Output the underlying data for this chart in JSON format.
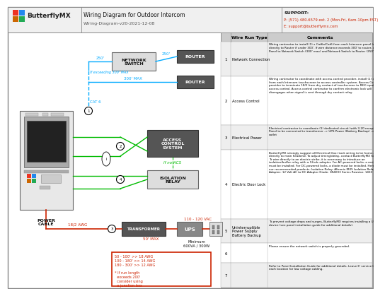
{
  "title": "Wiring Diagram for Outdoor Intercom",
  "subtitle": "Wiring-Diagram-v20-2021-12-08",
  "support_title": "SUPPORT:",
  "support_phone": "P: (571) 480.6579 ext. 2 (Mon-Fri, 6am-10pm EST)",
  "support_email": "E: support@butterflymx.com",
  "bg_color": "#ffffff",
  "header_bg": "#f0f0f0",
  "table_header_bg": "#cccccc",
  "table_row_bg": "#eeeeee",
  "table_row_bg2": "#ffffff",
  "border_color": "#888888",
  "blue_line": "#00aaff",
  "green_line": "#00bb00",
  "red_line": "#cc2200",
  "dark_box": "#555555",
  "light_box": "#dddddd",
  "text_color": "#000000",
  "red_text": "#cc2200",
  "blue_text": "#00aaff",
  "green_text": "#00bb00",
  "table_rows": [
    {
      "num": "1",
      "type": "Network Connection",
      "comment": "Wiring contractor to install (1) x Cat6a/Cat6 from each Intercom panel location directly to Router if under 300'. If wire distance exceeds 300' to router, connect Panel to Network Switch (300' max) and Network Switch to Router (250' max)."
    },
    {
      "num": "2",
      "type": "Access Control",
      "comment": "Wiring contractor to coordinate with access control provider, install (1) x 18/2 from each Intercom touchscreen to access controller system. Access Control provider to terminate 18/2 from dry contact of touchscreen to REX input of the access control. Access control contractor to confirm electronic lock will disengages when signal is sent through dry contact relay."
    },
    {
      "num": "3",
      "type": "Electrical Power",
      "comment": "Electrical contractor to coordinate (1) dedicated circuit (with 3-20 receptacle). Panel to be connected to transformer -> UPS Power (Battery Backup) -> Wall outlet"
    },
    {
      "num": "4",
      "type": "Electric Door Lock",
      "comment": "ButterflyMX strongly suggest all Electrical Door Lock wiring to be home-run directly to main headend. To adjust timing/delay, contact ButterflyMX Support. To wire directly to an electric strike, it is necessary to introduce an isolation/buffer relay with a 12vdc adapter. For AC-powered locks, a resistor must be installed. For DC-powered locks, a diode must be installed. Here are our recommended products: Isolation Relay: Altronix IR05 Isolation Relay Adapter: 12 Volt AC to DC Adapter Diode: 1N4003 Series Resistor: 1450"
    },
    {
      "num": "5",
      "type": "Uninterruptible\nPower Supply\nBattery Backup",
      "comment": "To prevent voltage drops and surges, ButterflyMX requires installing a UPS device (see panel installation guide for additional details)."
    },
    {
      "num": "6",
      "type": "",
      "comment": "Please ensure the network switch is properly grounded."
    },
    {
      "num": "7",
      "type": "",
      "comment": "Refer to Panel Installation Guide for additional details. Leave 6' service loop at each location for low voltage cabling."
    }
  ]
}
